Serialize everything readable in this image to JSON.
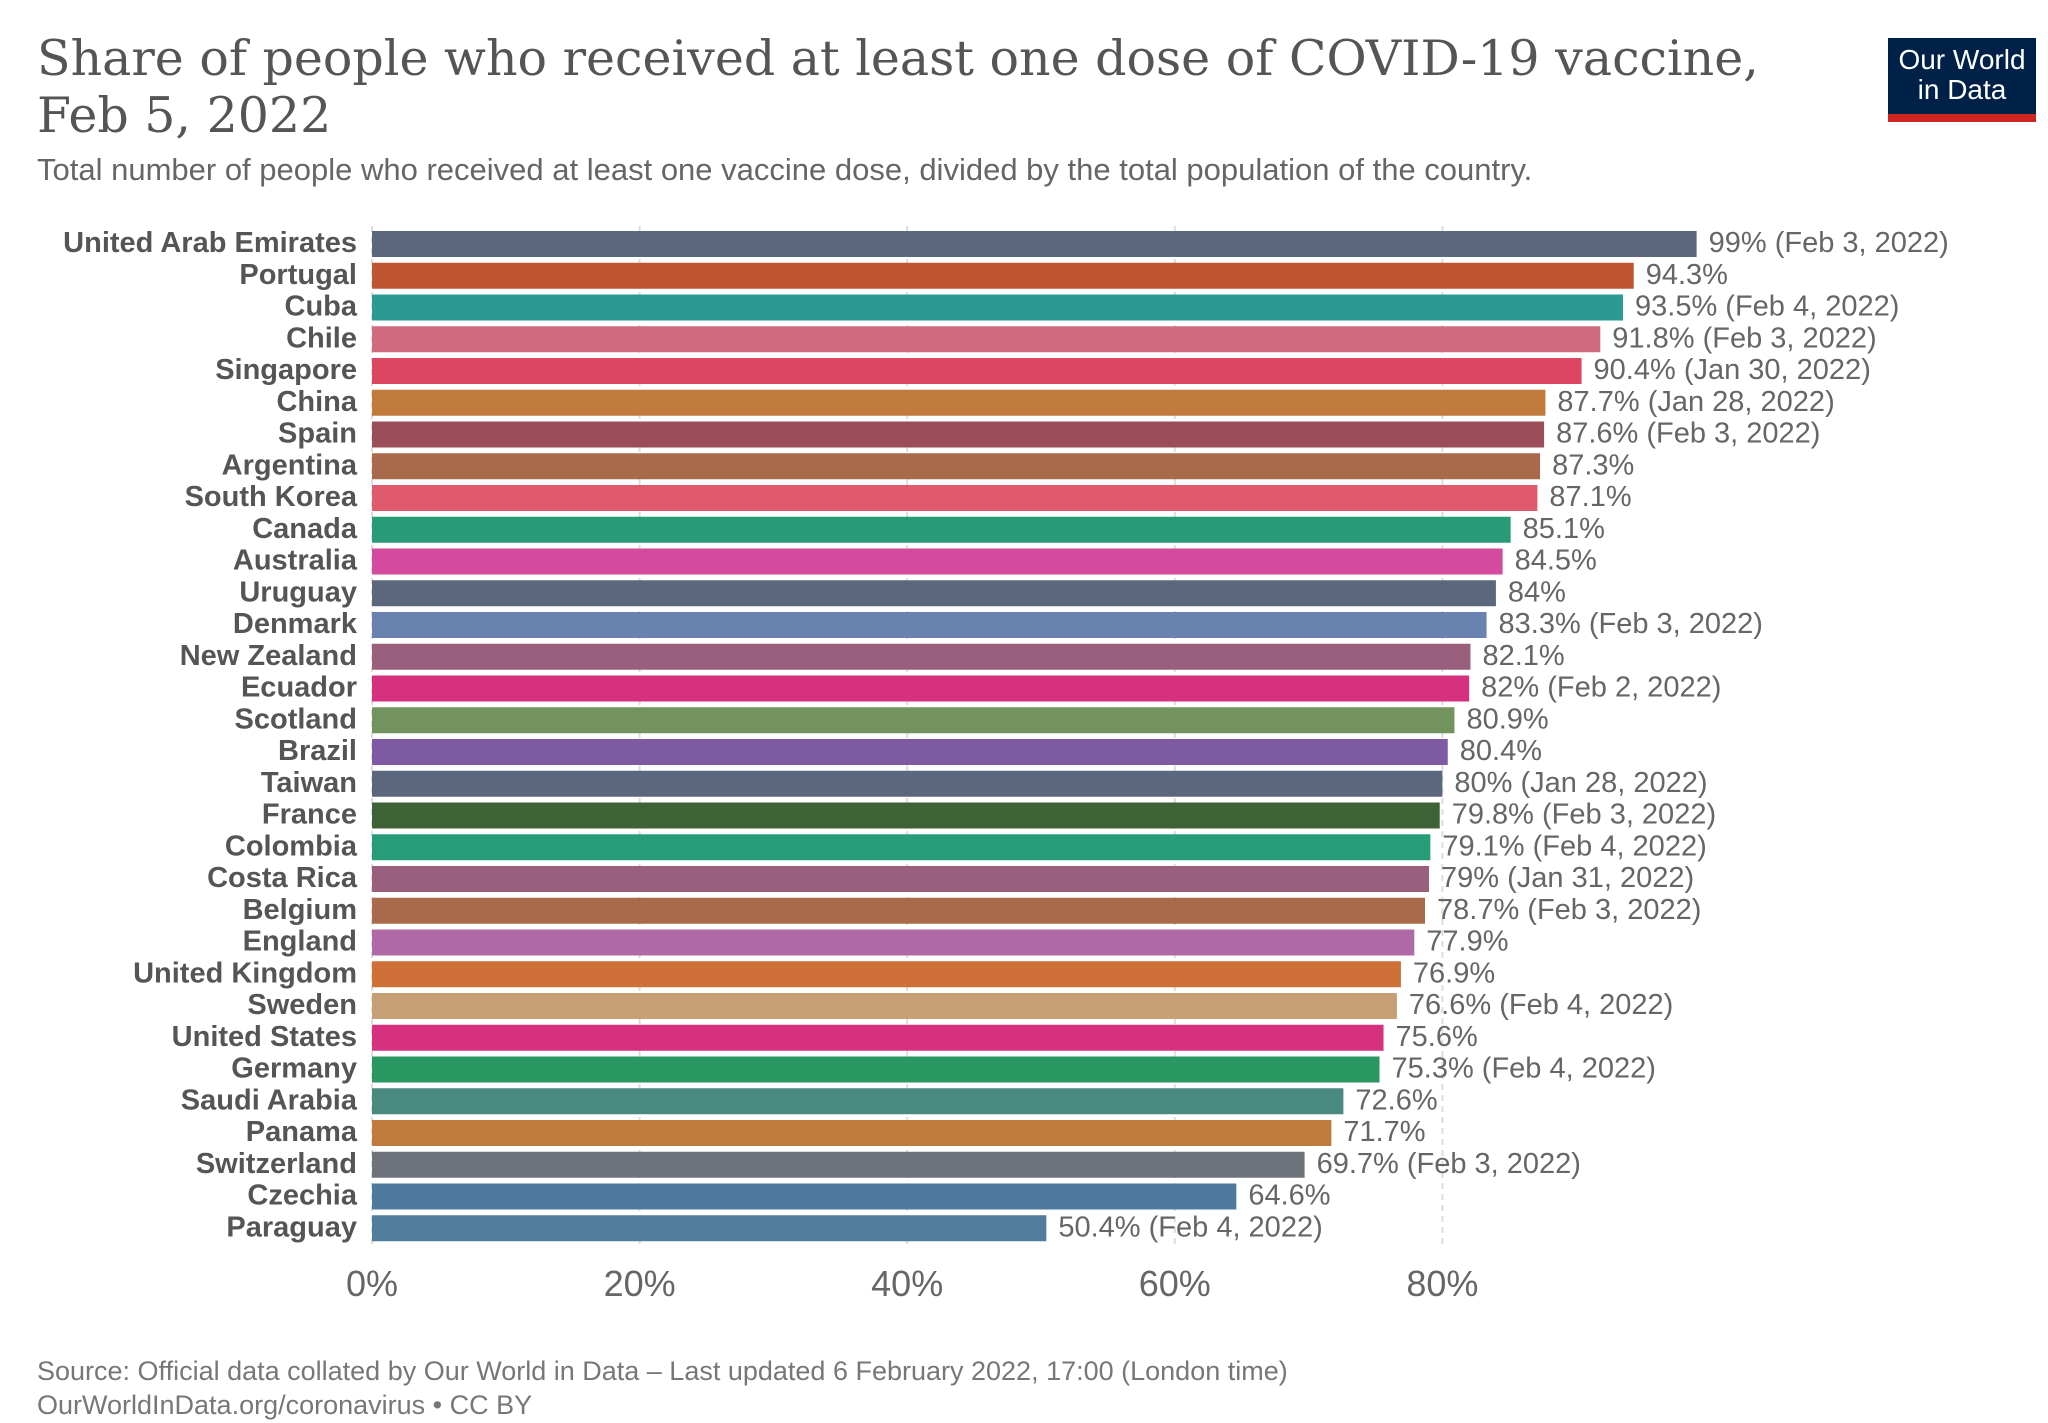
{
  "header": {
    "title": "Share of people who received at least one dose of COVID-19 vaccine, Feb 5, 2022",
    "subtitle": "Total number of people who received at least one vaccine dose, divided by the total population of the country."
  },
  "logo": {
    "line1": "Our World",
    "line2": "in Data"
  },
  "footer": {
    "source": "Source: Official data collated by Our World in Data – Last updated 6 February 2022, 17:00 (London time)",
    "link": "OurWorldInData.org/coronavirus • CC BY"
  },
  "chart_data": {
    "type": "bar",
    "orientation": "horizontal",
    "title": "Share of people who received at least one dose of COVID-19 vaccine, Feb 5, 2022",
    "xlim": [
      0,
      100
    ],
    "xticks": [
      0,
      20,
      40,
      60,
      80
    ],
    "xtick_labels": [
      "0%",
      "20%",
      "40%",
      "60%",
      "80%"
    ],
    "grid": true,
    "bars": [
      {
        "category": "United Arab Emirates",
        "value": 99,
        "label": "99% (Feb 3, 2022)",
        "color": "#5b677d"
      },
      {
        "category": "Portugal",
        "value": 94.3,
        "label": "94.3%",
        "color": "#c05532"
      },
      {
        "category": "Cuba",
        "value": 93.5,
        "label": "93.5% (Feb 4, 2022)",
        "color": "#2a9a92"
      },
      {
        "category": "Chile",
        "value": 91.8,
        "label": "91.8% (Feb 3, 2022)",
        "color": "#d06a7e"
      },
      {
        "category": "Singapore",
        "value": 90.4,
        "label": "90.4% (Jan 30, 2022)",
        "color": "#dc4660"
      },
      {
        "category": "China",
        "value": 87.7,
        "label": "87.7% (Jan 28, 2022)",
        "color": "#c07a3c"
      },
      {
        "category": "Spain",
        "value": 87.6,
        "label": "87.6% (Feb 3, 2022)",
        "color": "#9b4e5a"
      },
      {
        "category": "Argentina",
        "value": 87.3,
        "label": "87.3%",
        "color": "#a86a4a"
      },
      {
        "category": "South Korea",
        "value": 87.1,
        "label": "87.1%",
        "color": "#e05a6e"
      },
      {
        "category": "Canada",
        "value": 85.1,
        "label": "85.1%",
        "color": "#289a78"
      },
      {
        "category": "Australia",
        "value": 84.5,
        "label": "84.5%",
        "color": "#d34a9e"
      },
      {
        "category": "Uruguay",
        "value": 84,
        "label": "84%",
        "color": "#5b677d"
      },
      {
        "category": "Denmark",
        "value": 83.3,
        "label": "83.3% (Feb 3, 2022)",
        "color": "#6a82b0"
      },
      {
        "category": "New Zealand",
        "value": 82.1,
        "label": "82.1%",
        "color": "#9b5f7e"
      },
      {
        "category": "Ecuador",
        "value": 82,
        "label": "82% (Feb 2, 2022)",
        "color": "#d6317e"
      },
      {
        "category": "Scotland",
        "value": 80.9,
        "label": "80.9%",
        "color": "#72935e"
      },
      {
        "category": "Brazil",
        "value": 80.4,
        "label": "80.4%",
        "color": "#7e5aa3"
      },
      {
        "category": "Taiwan",
        "value": 80,
        "label": "80% (Jan 28, 2022)",
        "color": "#5b677d"
      },
      {
        "category": "France",
        "value": 79.8,
        "label": "79.8% (Feb 3, 2022)",
        "color": "#3d6236"
      },
      {
        "category": "Colombia",
        "value": 79.1,
        "label": "79.1% (Feb 4, 2022)",
        "color": "#279c78"
      },
      {
        "category": "Costa Rica",
        "value": 79,
        "label": "79% (Jan 31, 2022)",
        "color": "#9b5f7e"
      },
      {
        "category": "Belgium",
        "value": 78.7,
        "label": "78.7% (Feb 3, 2022)",
        "color": "#a86a4a"
      },
      {
        "category": "England",
        "value": 77.9,
        "label": "77.9%",
        "color": "#b06aa8"
      },
      {
        "category": "United Kingdom",
        "value": 76.9,
        "label": "76.9%",
        "color": "#cf7038"
      },
      {
        "category": "Sweden",
        "value": 76.6,
        "label": "76.6% (Feb 4, 2022)",
        "color": "#c6a074"
      },
      {
        "category": "United States",
        "value": 75.6,
        "label": "75.6%",
        "color": "#d6317e"
      },
      {
        "category": "Germany",
        "value": 75.3,
        "label": "75.3% (Feb 4, 2022)",
        "color": "#2a9660"
      },
      {
        "category": "Saudi Arabia",
        "value": 72.6,
        "label": "72.6%",
        "color": "#4a8a7e"
      },
      {
        "category": "Panama",
        "value": 71.7,
        "label": "71.7%",
        "color": "#c07a3c"
      },
      {
        "category": "Switzerland",
        "value": 69.7,
        "label": "69.7% (Feb 3, 2022)",
        "color": "#6e727a"
      },
      {
        "category": "Czechia",
        "value": 64.6,
        "label": "64.6%",
        "color": "#4e7aa0"
      },
      {
        "category": "Paraguay",
        "value": 50.4,
        "label": "50.4% (Feb 4, 2022)",
        "color": "#517c9c"
      }
    ]
  }
}
